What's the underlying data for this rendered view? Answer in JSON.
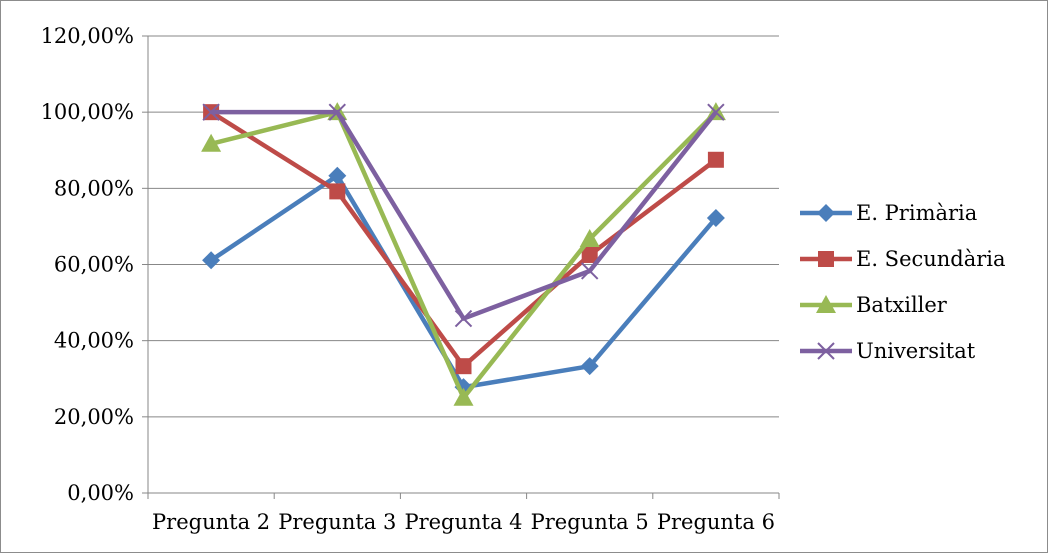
{
  "chart_data": {
    "type": "line",
    "categories": [
      "Pregunta 2",
      "Pregunta 3",
      "Pregunta 4",
      "Pregunta 5",
      "Pregunta 6"
    ],
    "series": [
      {
        "name": "E. Primària",
        "color": "#4a7ebb",
        "marker": "diamond",
        "values": [
          61.1,
          83.3,
          27.8,
          33.3,
          72.2
        ]
      },
      {
        "name": "E. Secundària",
        "color": "#be4b48",
        "marker": "square",
        "values": [
          100,
          79.2,
          33.3,
          62.5,
          87.5
        ]
      },
      {
        "name": "Batxiller",
        "color": "#98b954",
        "marker": "triangle",
        "values": [
          91.7,
          100,
          25,
          66.7,
          100
        ]
      },
      {
        "name": "Universitat",
        "color": "#7d60a0",
        "marker": "x",
        "values": [
          100,
          100,
          45.8,
          58.3,
          100
        ]
      }
    ],
    "y_ticks": [
      "0,00%",
      "20,00%",
      "40,00%",
      "60,00%",
      "80,00%",
      "100,00%",
      "120,00%"
    ],
    "ylim": [
      0,
      120
    ],
    "grid": true,
    "legend": "right"
  }
}
